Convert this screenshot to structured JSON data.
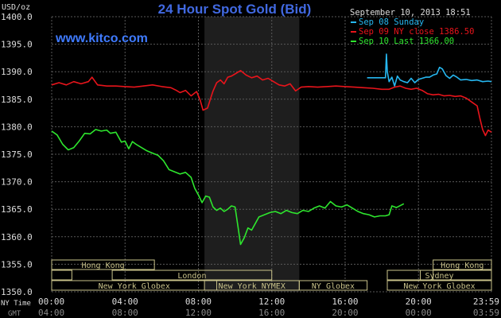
{
  "header": {
    "unit": "USD/oz",
    "title": "24 Hour Spot Gold (Bid)",
    "site": "www.kitco.com",
    "timestamp": "September 10, 2013 18:51"
  },
  "footer": {
    "ny_time_label": "NY Time",
    "gmt_label": "GMT",
    "gmt_ticks": [
      "04:00",
      "08:00",
      "12:00",
      "16:00",
      "20:00",
      "00:00",
      "03:59"
    ]
  },
  "sessions": [
    {
      "label": "Hong Kong",
      "start": 0,
      "end": 5.6
    },
    {
      "label": "",
      "start": 0,
      "end": 1.1
    },
    {
      "label": "London",
      "start": 3.3,
      "end": 12
    },
    {
      "label": "New York Globex",
      "start": 0,
      "end": 9.0
    },
    {
      "label": "New York NYMEX",
      "start": 8.33,
      "end": 13.5
    },
    {
      "label": "NY Globex",
      "start": 13.5,
      "end": 17.2
    },
    {
      "label": "",
      "start": 18.3,
      "end": 20.1
    },
    {
      "label": "Sydney",
      "start": 18.3,
      "end": 23.98
    },
    {
      "label": "New York Globex",
      "start": 18.3,
      "end": 23.98
    },
    {
      "label": "Hong Kong",
      "start": 20.8,
      "end": 23.98
    },
    {
      "label": "",
      "start": 20.8,
      "end": 23.98
    }
  ],
  "colors": {
    "background": "#000000",
    "grid": "#595959",
    "shade": "#1e1e1e",
    "title": "#4169e1",
    "site": "#3f7bff",
    "session_box": "#c9c28a",
    "axis_text": "#dddddd",
    "gmt_text": "#8a8a8a",
    "sep08": "#26b7f0",
    "sep09": "#e8141b",
    "sep10": "#2ee62e"
  },
  "chart_data": {
    "type": "line",
    "title": "24 Hour Spot Gold (Bid)",
    "ylabel": "USD/oz",
    "xlabel": "NY Time",
    "xlim": [
      0,
      23.98
    ],
    "ylim": [
      1350,
      1400
    ],
    "x_ticks": [
      "00:00",
      "04:00",
      "08:00",
      "12:00",
      "16:00",
      "20:00",
      "23:59"
    ],
    "y_ticks": [
      "1400.0",
      "1395.0",
      "1390.0",
      "1385.0",
      "1380.0",
      "1375.0",
      "1370.0",
      "1365.0",
      "1360.0",
      "1355.0",
      "1350.0"
    ],
    "grid": true,
    "shaded_region": [
      8.33,
      13.5
    ],
    "legend_position": "top-right",
    "series": [
      {
        "name": "Sep 08 Sunday",
        "color": "#26b7f0",
        "points": [
          [
            17.2,
            1388.9
          ],
          [
            18.2,
            1388.9
          ],
          [
            18.25,
            1393.2
          ],
          [
            18.3,
            1390.0
          ],
          [
            18.4,
            1388.2
          ],
          [
            18.55,
            1389.0
          ],
          [
            18.7,
            1387.4
          ],
          [
            18.85,
            1389.2
          ],
          [
            19.0,
            1388.5
          ],
          [
            19.2,
            1388.2
          ],
          [
            19.4,
            1388.0
          ],
          [
            19.6,
            1388.8
          ],
          [
            19.8,
            1388.0
          ],
          [
            20.0,
            1388.6
          ],
          [
            20.2,
            1388.8
          ],
          [
            20.4,
            1389.0
          ],
          [
            20.6,
            1389.0
          ],
          [
            20.8,
            1389.4
          ],
          [
            21.0,
            1389.6
          ],
          [
            21.15,
            1390.8
          ],
          [
            21.3,
            1390.5
          ],
          [
            21.5,
            1389.3
          ],
          [
            21.7,
            1388.8
          ],
          [
            21.9,
            1389.4
          ],
          [
            22.1,
            1389.0
          ],
          [
            22.3,
            1388.5
          ],
          [
            22.6,
            1388.6
          ],
          [
            22.9,
            1388.4
          ],
          [
            23.2,
            1388.5
          ],
          [
            23.5,
            1388.2
          ],
          [
            23.8,
            1388.3
          ],
          [
            23.98,
            1388.2
          ]
        ]
      },
      {
        "name": "Sep 09 NY close 1386.50",
        "color": "#e8141b",
        "points": [
          [
            0.0,
            1387.6
          ],
          [
            0.4,
            1388.0
          ],
          [
            0.8,
            1387.6
          ],
          [
            1.2,
            1388.2
          ],
          [
            1.6,
            1387.8
          ],
          [
            2.0,
            1388.2
          ],
          [
            2.2,
            1389.0
          ],
          [
            2.5,
            1387.6
          ],
          [
            3.0,
            1387.4
          ],
          [
            3.5,
            1387.4
          ],
          [
            4.0,
            1387.3
          ],
          [
            4.5,
            1387.2
          ],
          [
            5.0,
            1387.4
          ],
          [
            5.5,
            1387.6
          ],
          [
            6.0,
            1387.3
          ],
          [
            6.5,
            1387.1
          ],
          [
            6.8,
            1386.6
          ],
          [
            7.0,
            1386.2
          ],
          [
            7.3,
            1386.6
          ],
          [
            7.6,
            1385.6
          ],
          [
            7.9,
            1386.4
          ],
          [
            8.1,
            1384.8
          ],
          [
            8.25,
            1383.0
          ],
          [
            8.5,
            1383.4
          ],
          [
            8.65,
            1385.0
          ],
          [
            8.8,
            1386.5
          ],
          [
            9.0,
            1388.0
          ],
          [
            9.2,
            1388.5
          ],
          [
            9.4,
            1387.8
          ],
          [
            9.6,
            1389.0
          ],
          [
            9.8,
            1389.2
          ],
          [
            10.0,
            1389.6
          ],
          [
            10.3,
            1390.2
          ],
          [
            10.6,
            1389.4
          ],
          [
            10.9,
            1388.9
          ],
          [
            11.2,
            1389.2
          ],
          [
            11.5,
            1388.5
          ],
          [
            11.8,
            1388.8
          ],
          [
            12.1,
            1388.2
          ],
          [
            12.4,
            1387.6
          ],
          [
            12.7,
            1387.4
          ],
          [
            13.0,
            1387.8
          ],
          [
            13.3,
            1386.5
          ],
          [
            13.6,
            1387.2
          ],
          [
            14.0,
            1387.3
          ],
          [
            14.5,
            1387.2
          ],
          [
            15.0,
            1387.3
          ],
          [
            15.5,
            1387.4
          ],
          [
            16.0,
            1387.3
          ],
          [
            16.5,
            1387.2
          ],
          [
            17.0,
            1387.1
          ],
          [
            17.5,
            1387.0
          ],
          [
            18.0,
            1386.8
          ],
          [
            18.4,
            1386.8
          ],
          [
            18.7,
            1387.2
          ],
          [
            19.0,
            1387.4
          ],
          [
            19.3,
            1387.0
          ],
          [
            19.6,
            1386.8
          ],
          [
            19.9,
            1387.0
          ],
          [
            20.2,
            1386.6
          ],
          [
            20.5,
            1386.0
          ],
          [
            20.8,
            1385.8
          ],
          [
            21.1,
            1385.9
          ],
          [
            21.4,
            1385.6
          ],
          [
            21.7,
            1385.7
          ],
          [
            22.0,
            1385.5
          ],
          [
            22.3,
            1385.6
          ],
          [
            22.6,
            1385.2
          ],
          [
            22.9,
            1384.5
          ],
          [
            23.2,
            1383.8
          ],
          [
            23.35,
            1381.5
          ],
          [
            23.5,
            1379.5
          ],
          [
            23.65,
            1378.4
          ],
          [
            23.8,
            1379.4
          ],
          [
            23.98,
            1379.0
          ]
        ]
      },
      {
        "name": "Sep 10 Last 1366.00",
        "color": "#2ee62e",
        "points": [
          [
            0.0,
            1379.2
          ],
          [
            0.3,
            1378.5
          ],
          [
            0.6,
            1376.8
          ],
          [
            0.9,
            1375.8
          ],
          [
            1.2,
            1376.2
          ],
          [
            1.5,
            1377.4
          ],
          [
            1.8,
            1378.8
          ],
          [
            2.1,
            1378.7
          ],
          [
            2.4,
            1379.5
          ],
          [
            2.7,
            1379.2
          ],
          [
            3.0,
            1379.4
          ],
          [
            3.2,
            1378.8
          ],
          [
            3.5,
            1379.0
          ],
          [
            3.8,
            1377.2
          ],
          [
            4.0,
            1377.4
          ],
          [
            4.2,
            1376.0
          ],
          [
            4.4,
            1377.3
          ],
          [
            4.6,
            1376.8
          ],
          [
            4.9,
            1376.2
          ],
          [
            5.2,
            1375.6
          ],
          [
            5.5,
            1375.2
          ],
          [
            5.8,
            1374.8
          ],
          [
            6.1,
            1373.8
          ],
          [
            6.4,
            1372.2
          ],
          [
            6.7,
            1371.8
          ],
          [
            7.0,
            1371.4
          ],
          [
            7.3,
            1371.7
          ],
          [
            7.6,
            1370.8
          ],
          [
            7.8,
            1368.8
          ],
          [
            8.0,
            1367.6
          ],
          [
            8.2,
            1366.2
          ],
          [
            8.4,
            1367.4
          ],
          [
            8.6,
            1367.2
          ],
          [
            8.8,
            1365.4
          ],
          [
            9.0,
            1364.8
          ],
          [
            9.2,
            1365.2
          ],
          [
            9.4,
            1364.6
          ],
          [
            9.6,
            1365.0
          ],
          [
            9.8,
            1365.6
          ],
          [
            10.0,
            1365.4
          ],
          [
            10.15,
            1362.0
          ],
          [
            10.3,
            1358.6
          ],
          [
            10.5,
            1359.8
          ],
          [
            10.7,
            1361.6
          ],
          [
            10.9,
            1361.2
          ],
          [
            11.1,
            1362.4
          ],
          [
            11.3,
            1363.6
          ],
          [
            11.6,
            1364.0
          ],
          [
            11.9,
            1364.4
          ],
          [
            12.2,
            1364.6
          ],
          [
            12.5,
            1364.2
          ],
          [
            12.8,
            1364.8
          ],
          [
            13.1,
            1364.4
          ],
          [
            13.4,
            1364.2
          ],
          [
            13.7,
            1364.8
          ],
          [
            14.0,
            1364.6
          ],
          [
            14.3,
            1365.2
          ],
          [
            14.6,
            1365.6
          ],
          [
            14.9,
            1365.2
          ],
          [
            15.2,
            1366.4
          ],
          [
            15.5,
            1365.6
          ],
          [
            15.8,
            1365.4
          ],
          [
            16.1,
            1365.8
          ],
          [
            16.4,
            1365.2
          ],
          [
            16.7,
            1364.6
          ],
          [
            17.0,
            1364.2
          ],
          [
            17.3,
            1364.0
          ],
          [
            17.6,
            1363.6
          ],
          [
            17.9,
            1363.8
          ],
          [
            18.2,
            1363.8
          ],
          [
            18.4,
            1364.0
          ],
          [
            18.55,
            1365.6
          ],
          [
            18.8,
            1365.3
          ],
          [
            19.2,
            1366.0
          ]
        ]
      }
    ]
  }
}
